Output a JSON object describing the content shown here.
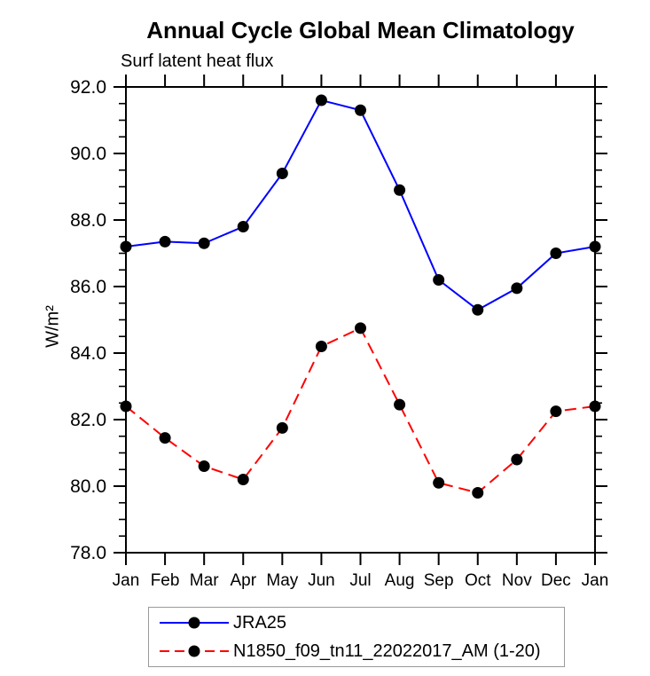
{
  "chart_data": {
    "type": "line",
    "title": "Annual Cycle Global Mean Climatology",
    "subtitle": "Surf latent heat flux",
    "ylabel": "W/m²",
    "xlabel": "",
    "categories": [
      "Jan",
      "Feb",
      "Mar",
      "Apr",
      "May",
      "Jun",
      "Jul",
      "Aug",
      "Sep",
      "Oct",
      "Nov",
      "Dec",
      "Jan"
    ],
    "ylim": [
      78.0,
      92.0
    ],
    "ytick_step": 2.0,
    "ytick_minor_step": 0.5,
    "ytick_labels": [
      "78.0",
      "80.0",
      "82.0",
      "84.0",
      "86.0",
      "88.0",
      "90.0",
      "92.0"
    ],
    "grid": false,
    "legend_position": "bottom",
    "axis_color": "#000000",
    "series": [
      {
        "name": "JRA25",
        "color": "#0000ff",
        "style": "solid",
        "marker": "circle",
        "marker_color": "#000000",
        "values": [
          87.2,
          87.35,
          87.3,
          87.8,
          89.4,
          91.6,
          91.3,
          88.9,
          86.2,
          85.3,
          85.95,
          87.0,
          87.2
        ]
      },
      {
        "name": "N1850_f09_tn11_22022017_AM (1-20)",
        "color": "#ff0000",
        "style": "dashed",
        "marker": "circle",
        "marker_color": "#000000",
        "values": [
          82.4,
          81.45,
          80.6,
          80.2,
          81.75,
          84.2,
          84.75,
          82.45,
          80.1,
          79.8,
          80.8,
          82.25,
          82.4
        ]
      }
    ]
  }
}
